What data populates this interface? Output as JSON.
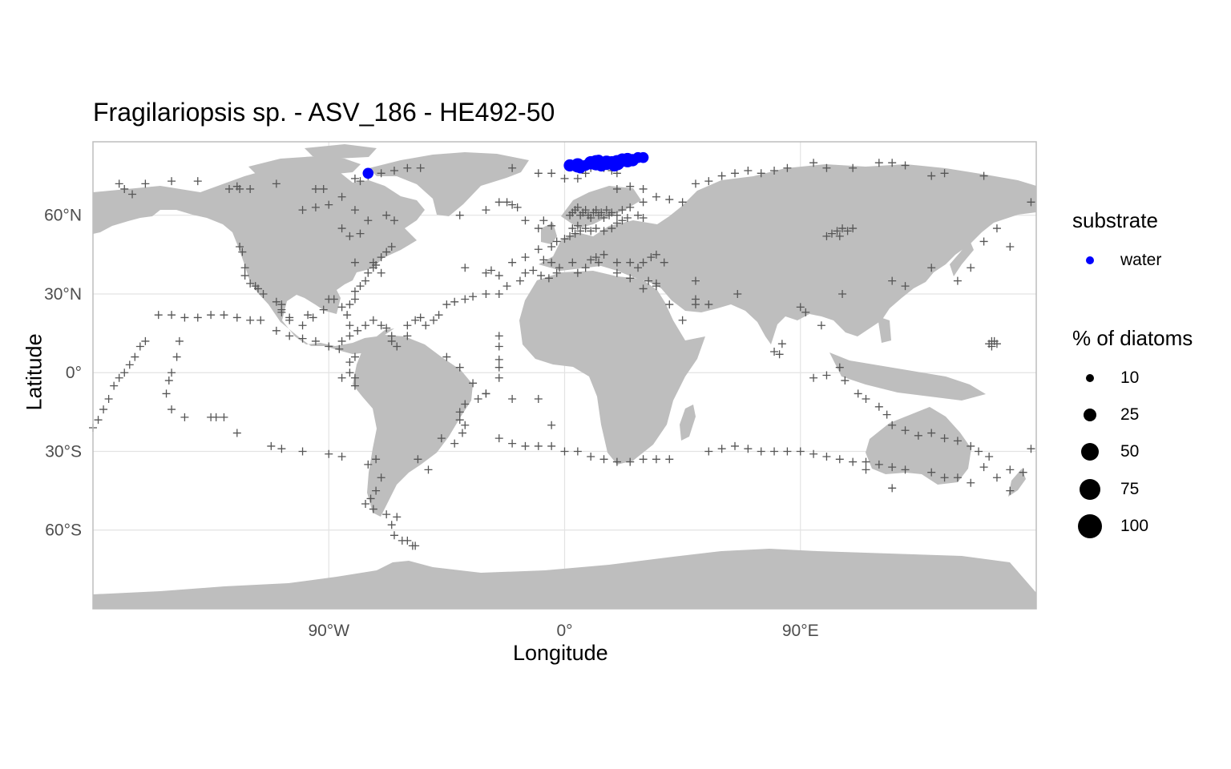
{
  "title": "Fragilariopsis sp. - ASV_186 - HE492-50",
  "x_axis": {
    "label": "Longitude",
    "ticks": [
      "90°W",
      "0°",
      "90°E"
    ]
  },
  "y_axis": {
    "label": "Latitude",
    "ticks": [
      "60°N",
      "30°N",
      "0°",
      "30°S",
      "60°S"
    ]
  },
  "legend": {
    "substrate_title": "substrate",
    "substrate_items": [
      {
        "label": "water",
        "color": "#0000ff"
      }
    ],
    "size_title": "% of diatoms",
    "size_items": [
      "10",
      "25",
      "50",
      "75",
      "100"
    ]
  },
  "colors": {
    "land": "#bebebe",
    "grid": "#e3e3e3",
    "cross": "#555555",
    "water_point": "#0000ff",
    "panel_border": "#bdbdbd"
  },
  "chart_data": {
    "type": "scatter",
    "projection": "equirectangular",
    "xlim": [
      -180,
      180
    ],
    "ylim": [
      -90,
      88
    ],
    "x_ticks": [
      -90,
      0,
      90
    ],
    "y_ticks": [
      60,
      30,
      0,
      -30,
      -60
    ],
    "grid": true,
    "legend_position": "right",
    "sample_sites": [
      [
        -170,
        72
      ],
      [
        -168,
        70
      ],
      [
        -165,
        68
      ],
      [
        -160,
        72
      ],
      [
        -150,
        73
      ],
      [
        -140,
        73
      ],
      [
        -128,
        70
      ],
      [
        -125,
        71
      ],
      [
        -124,
        70
      ],
      [
        -120,
        70
      ],
      [
        -110,
        72
      ],
      [
        -95,
        70
      ],
      [
        -92,
        70
      ],
      [
        -80,
        74
      ],
      [
        -78,
        73
      ],
      [
        -75,
        75
      ],
      [
        -70,
        76
      ],
      [
        -65,
        77
      ],
      [
        -60,
        78
      ],
      [
        -55,
        78
      ],
      [
        -100,
        62
      ],
      [
        -95,
        63
      ],
      [
        -90,
        64
      ],
      [
        -85,
        67
      ],
      [
        -80,
        62
      ],
      [
        -75,
        58
      ],
      [
        -78,
        53
      ],
      [
        -82,
        52
      ],
      [
        -85,
        55
      ],
      [
        -68,
        60
      ],
      [
        -65,
        58
      ],
      [
        -80,
        42
      ],
      [
        -73,
        40
      ],
      [
        -72,
        41
      ],
      [
        -70,
        38
      ],
      [
        -73,
        42
      ],
      [
        -70,
        44
      ],
      [
        -68,
        46
      ],
      [
        -66,
        48
      ],
      [
        -124,
        48
      ],
      [
        -123,
        46
      ],
      [
        -122,
        40
      ],
      [
        -122,
        37
      ],
      [
        -120,
        34
      ],
      [
        -118,
        33
      ],
      [
        -117,
        32
      ],
      [
        -115,
        30
      ],
      [
        -110,
        27
      ],
      [
        -108,
        24
      ],
      [
        -105,
        21
      ],
      [
        -98,
        22
      ],
      [
        -96,
        21
      ],
      [
        -92,
        24
      ],
      [
        -90,
        28
      ],
      [
        -88,
        28
      ],
      [
        -85,
        25
      ],
      [
        -83,
        22
      ],
      [
        -82,
        26
      ],
      [
        -80,
        28
      ],
      [
        -80,
        31
      ],
      [
        -78,
        33
      ],
      [
        -76,
        35
      ],
      [
        -75,
        38
      ],
      [
        -82,
        18
      ],
      [
        -79,
        16
      ],
      [
        -76,
        18
      ],
      [
        -73,
        20
      ],
      [
        -70,
        18
      ],
      [
        -68,
        17
      ],
      [
        -66,
        12
      ],
      [
        -66,
        14
      ],
      [
        -64,
        10
      ],
      [
        -60,
        14
      ],
      [
        -82,
        14
      ],
      [
        -85,
        12
      ],
      [
        -86,
        9
      ],
      [
        -90,
        10
      ],
      [
        -95,
        12
      ],
      [
        -100,
        13
      ],
      [
        -105,
        14
      ],
      [
        -110,
        16
      ],
      [
        -116,
        20
      ],
      [
        -120,
        20
      ],
      [
        -125,
        21
      ],
      [
        -130,
        22
      ],
      [
        -135,
        22
      ],
      [
        -140,
        21
      ],
      [
        -145,
        21
      ],
      [
        -150,
        22
      ],
      [
        -155,
        22
      ],
      [
        -160,
        12
      ],
      [
        -162,
        10
      ],
      [
        -164,
        6
      ],
      [
        -166,
        3
      ],
      [
        -168,
        0
      ],
      [
        -170,
        -2
      ],
      [
        -172,
        -5
      ],
      [
        -174,
        -10
      ],
      [
        -176,
        -14
      ],
      [
        -178,
        -18
      ],
      [
        -180,
        -21
      ],
      [
        -147,
        12
      ],
      [
        -148,
        6
      ],
      [
        -150,
        0
      ],
      [
        -151,
        -3
      ],
      [
        -152,
        -8
      ],
      [
        -150,
        -14
      ],
      [
        -145,
        -17
      ],
      [
        -135,
        -17
      ],
      [
        -133,
        -17
      ],
      [
        -130,
        -17
      ],
      [
        -125,
        -23
      ],
      [
        -112,
        -28
      ],
      [
        -108,
        -29
      ],
      [
        -100,
        -30
      ],
      [
        -90,
        -31
      ],
      [
        -85,
        -32
      ],
      [
        -75,
        -35
      ],
      [
        -72,
        -33
      ],
      [
        -70,
        -40
      ],
      [
        -72,
        -45
      ],
      [
        -74,
        -48
      ],
      [
        -76,
        -50
      ],
      [
        -73,
        -52
      ],
      [
        -68,
        -54
      ],
      [
        -64,
        -55
      ],
      [
        -66,
        -58
      ],
      [
        -65,
        -62
      ],
      [
        -62,
        -64
      ],
      [
        -60,
        -64
      ],
      [
        -58,
        -66
      ],
      [
        -57,
        -66
      ],
      [
        -52,
        -37
      ],
      [
        -56,
        -33
      ],
      [
        -47,
        -25
      ],
      [
        -42,
        -27
      ],
      [
        -39,
        -23
      ],
      [
        -38,
        -20
      ],
      [
        -40,
        -15
      ],
      [
        -40,
        -18
      ],
      [
        -38,
        -12
      ],
      [
        -33,
        -10
      ],
      [
        -30,
        -8
      ],
      [
        -25,
        -25
      ],
      [
        -20,
        -27
      ],
      [
        -15,
        -28
      ],
      [
        -10,
        -28
      ],
      [
        -5,
        -28
      ],
      [
        0,
        -30
      ],
      [
        5,
        -30
      ],
      [
        10,
        -32
      ],
      [
        15,
        -33
      ],
      [
        20,
        -34
      ],
      [
        25,
        -34
      ],
      [
        30,
        -33
      ],
      [
        35,
        -33
      ],
      [
        40,
        -33
      ],
      [
        -45,
        26
      ],
      [
        -42,
        27
      ],
      [
        -38,
        28
      ],
      [
        -35,
        29
      ],
      [
        -30,
        30
      ],
      [
        -25,
        30
      ],
      [
        -22,
        33
      ],
      [
        -17,
        35
      ],
      [
        -15,
        38
      ],
      [
        -12,
        39
      ],
      [
        -9,
        37
      ],
      [
        -6,
        36
      ],
      [
        -3,
        38
      ],
      [
        -50,
        20
      ],
      [
        -53,
        18
      ],
      [
        -57,
        20
      ],
      [
        -60,
        18
      ],
      [
        -55,
        21
      ],
      [
        -48,
        22
      ],
      [
        -25,
        14
      ],
      [
        -25,
        10
      ],
      [
        -25,
        5
      ],
      [
        -25,
        2
      ],
      [
        -25,
        -2
      ],
      [
        -30,
        -8
      ],
      [
        -35,
        -4
      ],
      [
        -40,
        2
      ],
      [
        -45,
        6
      ],
      [
        -20,
        -10
      ],
      [
        -10,
        -10
      ],
      [
        -5,
        -20
      ],
      [
        -85,
        -2
      ],
      [
        -82,
        0
      ],
      [
        -82,
        4
      ],
      [
        -80,
        6
      ],
      [
        -80,
        -2
      ],
      [
        -80,
        -5
      ],
      [
        -100,
        18
      ],
      [
        -105,
        20
      ],
      [
        -108,
        23
      ],
      [
        -108,
        26
      ],
      [
        -38,
        40
      ],
      [
        -30,
        38
      ],
      [
        -28,
        39
      ],
      [
        -25,
        37
      ],
      [
        -20,
        42
      ],
      [
        -15,
        44
      ],
      [
        -10,
        47
      ],
      [
        -5,
        48
      ],
      [
        -3,
        50
      ],
      [
        0,
        51
      ],
      [
        2,
        52
      ],
      [
        4,
        53
      ],
      [
        6,
        54
      ],
      [
        3,
        55
      ],
      [
        -5,
        56
      ],
      [
        -8,
        58
      ],
      [
        -10,
        55
      ],
      [
        -15,
        58
      ],
      [
        -18,
        63
      ],
      [
        -20,
        64
      ],
      [
        -22,
        65
      ],
      [
        -25,
        65
      ],
      [
        -30,
        62
      ],
      [
        -40,
        60
      ],
      [
        2,
        60
      ],
      [
        3,
        61
      ],
      [
        4,
        62
      ],
      [
        5,
        63
      ],
      [
        6,
        60
      ],
      [
        7,
        61
      ],
      [
        8,
        62
      ],
      [
        9,
        60
      ],
      [
        10,
        59
      ],
      [
        11,
        61
      ],
      [
        12,
        62
      ],
      [
        13,
        60
      ],
      [
        14,
        61
      ],
      [
        15,
        59
      ],
      [
        16,
        62
      ],
      [
        17,
        60
      ],
      [
        18,
        61
      ],
      [
        20,
        60
      ],
      [
        22,
        62
      ],
      [
        25,
        63
      ],
      [
        28,
        60
      ],
      [
        30,
        59
      ],
      [
        5,
        56
      ],
      [
        8,
        55
      ],
      [
        10,
        54
      ],
      [
        12,
        55
      ],
      [
        15,
        54
      ],
      [
        18,
        55
      ],
      [
        20,
        57
      ],
      [
        22,
        58
      ],
      [
        24,
        59
      ],
      [
        15,
        45
      ],
      [
        12,
        44
      ],
      [
        10,
        43
      ],
      [
        13,
        42
      ],
      [
        8,
        40
      ],
      [
        5,
        38
      ],
      [
        3,
        42
      ],
      [
        -2,
        40
      ],
      [
        -5,
        42
      ],
      [
        -8,
        43
      ],
      [
        20,
        38
      ],
      [
        25,
        36
      ],
      [
        28,
        40
      ],
      [
        32,
        35
      ],
      [
        35,
        34
      ],
      [
        30,
        32
      ],
      [
        35,
        33
      ],
      [
        40,
        26
      ],
      [
        45,
        20
      ],
      [
        50,
        28
      ],
      [
        55,
        26
      ],
      [
        50,
        35
      ],
      [
        20,
        42
      ],
      [
        25,
        42
      ],
      [
        30,
        42
      ],
      [
        35,
        45
      ],
      [
        33,
        44
      ],
      [
        38,
        42
      ],
      [
        20,
        70
      ],
      [
        25,
        71
      ],
      [
        30,
        70
      ],
      [
        40,
        66
      ],
      [
        45,
        65
      ],
      [
        30,
        65
      ],
      [
        35,
        67
      ],
      [
        50,
        72
      ],
      [
        55,
        73
      ],
      [
        60,
        75
      ],
      [
        65,
        76
      ],
      [
        70,
        77
      ],
      [
        75,
        76
      ],
      [
        80,
        77
      ],
      [
        85,
        78
      ],
      [
        95,
        80
      ],
      [
        100,
        78
      ],
      [
        110,
        78
      ],
      [
        120,
        80
      ],
      [
        125,
        80
      ],
      [
        130,
        79
      ],
      [
        140,
        75
      ],
      [
        145,
        76
      ],
      [
        160,
        75
      ],
      [
        -20,
        78
      ],
      [
        -10,
        76
      ],
      [
        -5,
        76
      ],
      [
        0,
        74
      ],
      [
        5,
        74
      ],
      [
        8,
        76
      ],
      [
        10,
        78
      ],
      [
        12,
        79
      ],
      [
        15,
        78
      ],
      [
        18,
        77
      ],
      [
        20,
        76
      ],
      [
        100,
        52
      ],
      [
        102,
        53
      ],
      [
        104,
        54
      ],
      [
        105,
        52
      ],
      [
        106,
        55
      ],
      [
        108,
        54
      ],
      [
        110,
        55
      ],
      [
        106,
        30
      ],
      [
        98,
        18
      ],
      [
        82,
        7
      ],
      [
        80,
        8
      ],
      [
        83,
        11
      ],
      [
        95,
        -2
      ],
      [
        100,
        -1
      ],
      [
        105,
        2
      ],
      [
        107,
        -3
      ],
      [
        112,
        -8
      ],
      [
        115,
        -10
      ],
      [
        120,
        -13
      ],
      [
        123,
        -16
      ],
      [
        125,
        -20
      ],
      [
        130,
        -22
      ],
      [
        135,
        -24
      ],
      [
        140,
        -23
      ],
      [
        145,
        -25
      ],
      [
        150,
        -26
      ],
      [
        155,
        -28
      ],
      [
        158,
        -30
      ],
      [
        162,
        -32
      ],
      [
        160,
        -36
      ],
      [
        125,
        -36
      ],
      [
        120,
        -35
      ],
      [
        115,
        -34
      ],
      [
        110,
        -34
      ],
      [
        105,
        -33
      ],
      [
        100,
        -32
      ],
      [
        95,
        -31
      ],
      [
        90,
        -30
      ],
      [
        85,
        -30
      ],
      [
        80,
        -30
      ],
      [
        75,
        -30
      ],
      [
        70,
        -29
      ],
      [
        65,
        -28
      ],
      [
        60,
        -29
      ],
      [
        55,
        -30
      ],
      [
        115,
        -37
      ],
      [
        130,
        -37
      ],
      [
        140,
        -38
      ],
      [
        145,
        -40
      ],
      [
        150,
        -40
      ],
      [
        155,
        -42
      ],
      [
        165,
        -40
      ],
      [
        170,
        -37
      ],
      [
        175,
        -38
      ],
      [
        178,
        -29
      ],
      [
        125,
        -44
      ],
      [
        170,
        -45
      ],
      [
        130,
        33
      ],
      [
        125,
        35
      ],
      [
        140,
        40
      ],
      [
        150,
        35
      ],
      [
        155,
        40
      ],
      [
        160,
        50
      ],
      [
        165,
        55
      ],
      [
        170,
        48
      ],
      [
        178,
        65
      ],
      [
        162,
        11
      ],
      [
        163,
        12
      ],
      [
        164,
        12
      ],
      [
        165,
        11
      ],
      [
        163,
        10
      ],
      [
        90,
        25
      ],
      [
        92,
        23
      ],
      [
        66,
        30
      ],
      [
        50,
        26
      ]
    ],
    "water_points": [
      [
        -75,
        76,
        10
      ],
      [
        2,
        79,
        15
      ],
      [
        5,
        79,
        25
      ],
      [
        8,
        79,
        10
      ],
      [
        10,
        80,
        20
      ],
      [
        12,
        80,
        30
      ],
      [
        14,
        79,
        15
      ],
      [
        16,
        80,
        25
      ],
      [
        18,
        80,
        20
      ],
      [
        20,
        80,
        30
      ],
      [
        22,
        81,
        20
      ],
      [
        24,
        81,
        25
      ],
      [
        26,
        81,
        15
      ],
      [
        28,
        82,
        10
      ],
      [
        30,
        82,
        10
      ],
      [
        6,
        78,
        10
      ],
      [
        13,
        81,
        10
      ],
      [
        19,
        79,
        15
      ]
    ]
  }
}
